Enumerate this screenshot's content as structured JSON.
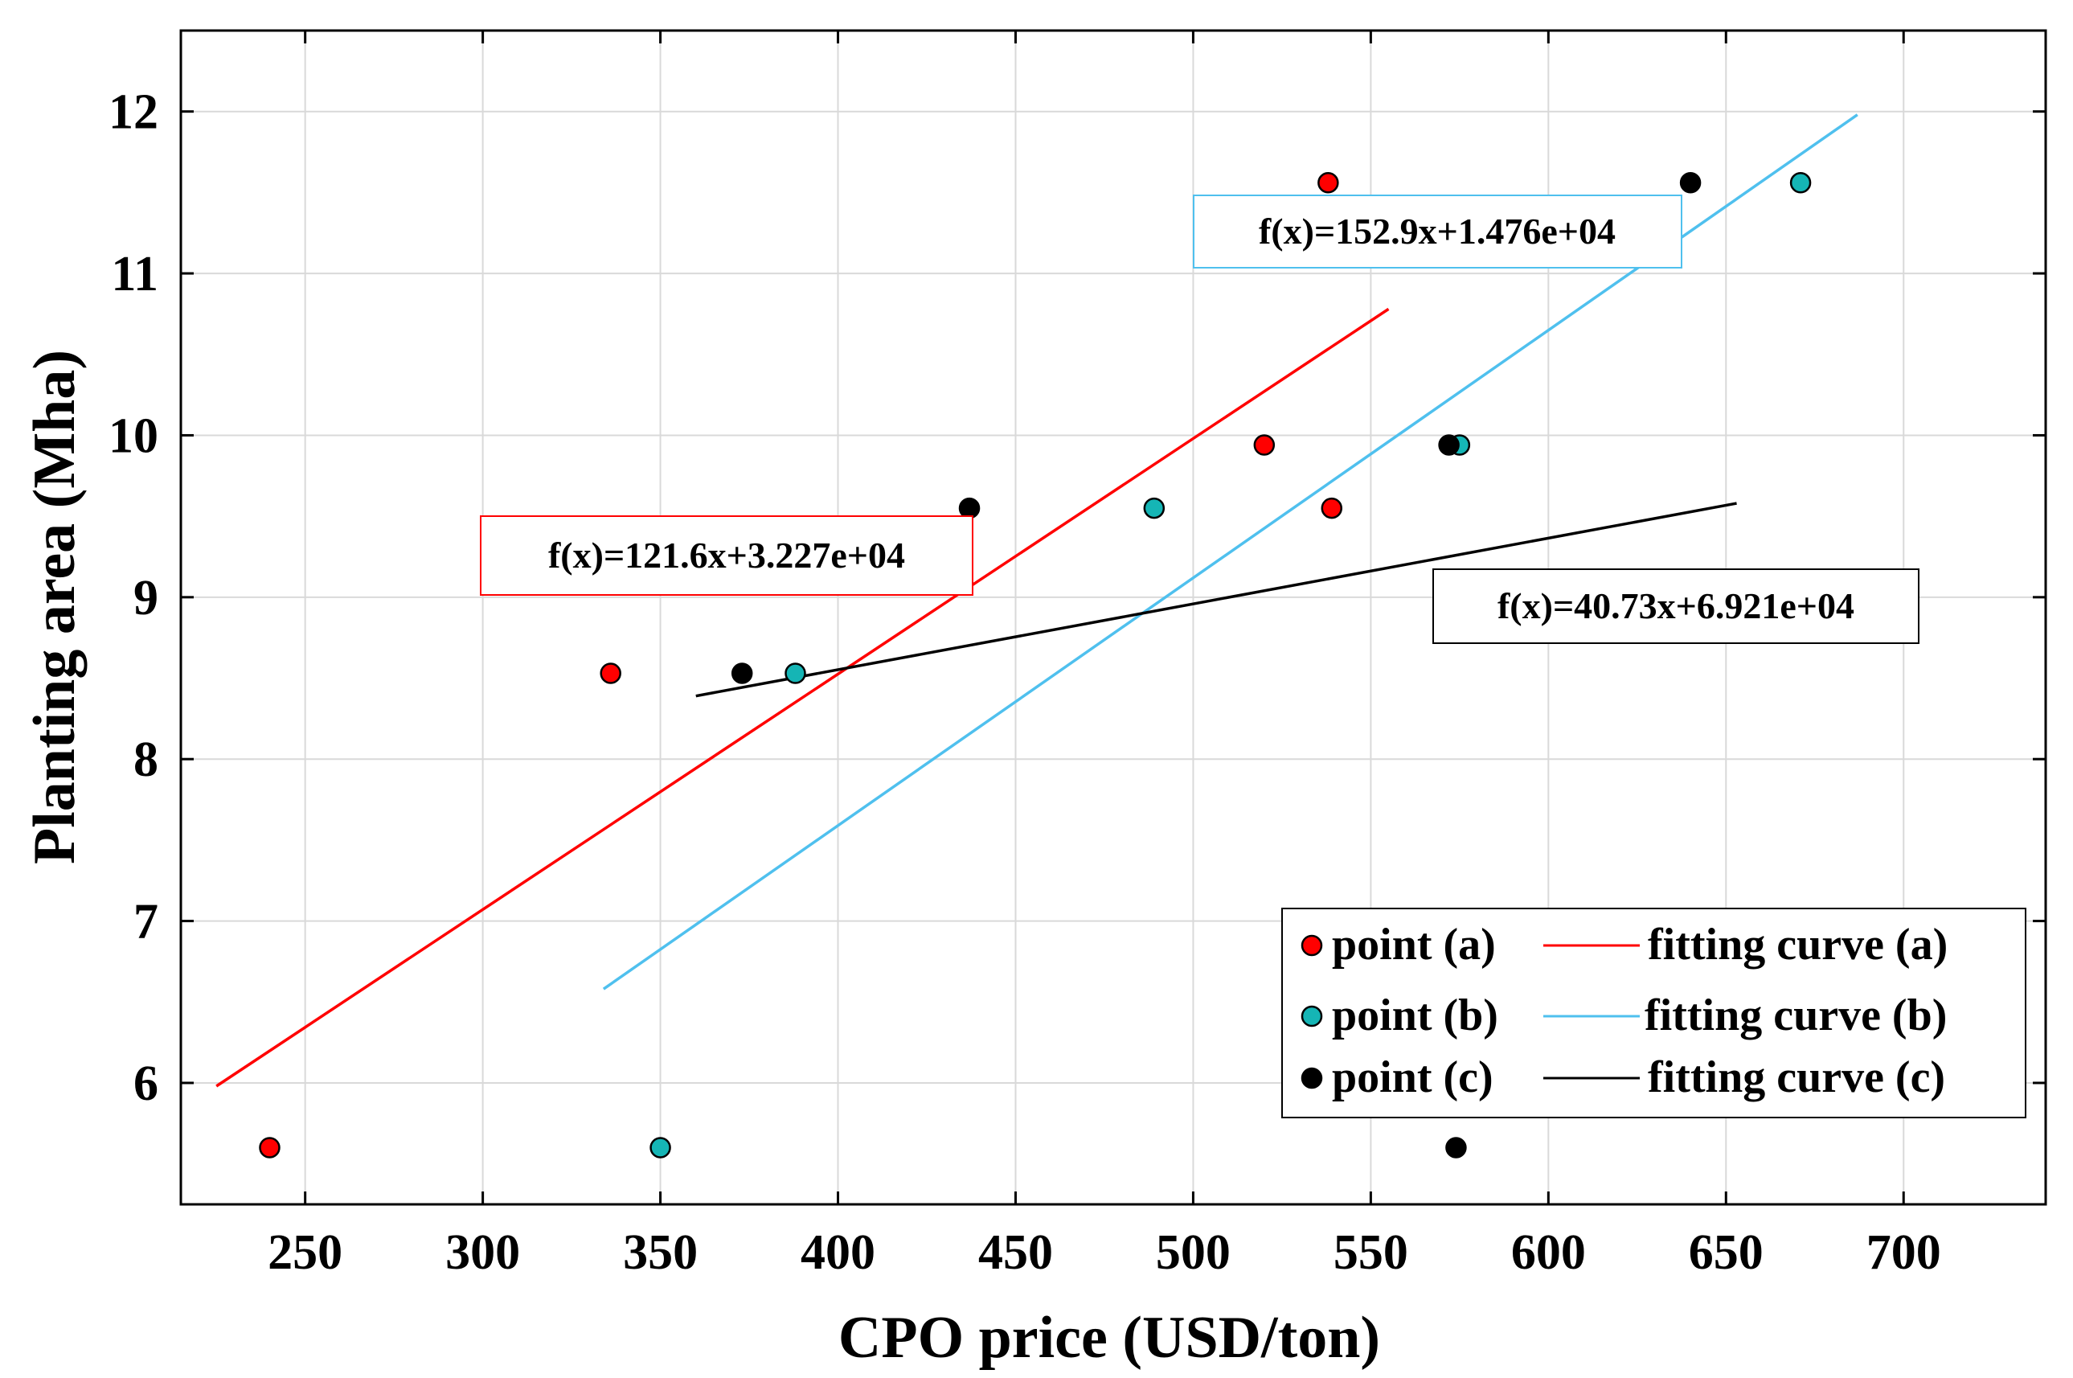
{
  "chart_data": {
    "type": "scatter",
    "title": "",
    "xlabel": "CPO price (USD/ton)",
    "ylabel": "Planting area (Mha)",
    "xlim": [
      215,
      740
    ],
    "ylim": [
      5.25,
      12.5
    ],
    "xticks": [
      250,
      300,
      350,
      400,
      450,
      500,
      550,
      600,
      650,
      700
    ],
    "yticks": [
      6,
      7,
      8,
      9,
      10,
      11,
      12
    ],
    "grid": true,
    "legend_location": "bottom-right",
    "colors": {
      "a": "#ff0000",
      "b": "#15b5b5",
      "c": "#000000",
      "line_b": "#4fc0ee"
    },
    "series": [
      {
        "name": "point (a)",
        "kind": "scatter",
        "color": "#ff0000",
        "points": [
          [
            240,
            5.6
          ],
          [
            336,
            8.53
          ],
          [
            520,
            9.94
          ],
          [
            538,
            11.56
          ],
          [
            539,
            9.55
          ]
        ]
      },
      {
        "name": "point (b)",
        "kind": "scatter",
        "color": "#15b5b5",
        "points": [
          [
            350,
            5.6
          ],
          [
            388,
            8.53
          ],
          [
            489,
            9.55
          ],
          [
            575,
            9.94
          ],
          [
            671,
            11.56
          ]
        ]
      },
      {
        "name": "point (c)",
        "kind": "scatter",
        "color": "#000000",
        "points": [
          [
            373,
            8.53
          ],
          [
            437,
            9.55
          ],
          [
            572,
            9.94
          ],
          [
            574,
            5.6
          ],
          [
            640,
            11.56
          ]
        ]
      },
      {
        "name": "fitting curve (a)",
        "kind": "line",
        "color": "#ff0000",
        "points": [
          [
            225,
            5.98
          ],
          [
            555,
            10.78
          ]
        ]
      },
      {
        "name": "fitting curve (b)",
        "kind": "line",
        "color": "#4fc0ee",
        "points": [
          [
            334,
            6.58
          ],
          [
            687,
            11.98
          ]
        ]
      },
      {
        "name": "fitting curve (c)",
        "kind": "line",
        "color": "#000000",
        "points": [
          [
            360,
            8.39
          ],
          [
            653,
            9.58
          ]
        ]
      }
    ],
    "annotations": [
      {
        "text": "f(x)=121.6x+3.227e+04",
        "series": "a"
      },
      {
        "text": "f(x)=152.9x+1.476e+04",
        "series": "b"
      },
      {
        "text": "f(x)=40.73x+6.921e+04",
        "series": "c"
      }
    ],
    "legend": [
      {
        "marker_label": "point (a)",
        "line_label": "fitting curve (a)",
        "series": "a"
      },
      {
        "marker_label": "point (b)",
        "line_label": "fitting curve (b)",
        "series": "b"
      },
      {
        "marker_label": "point (c)",
        "line_label": "fitting curve (c)",
        "series": "c"
      }
    ]
  }
}
